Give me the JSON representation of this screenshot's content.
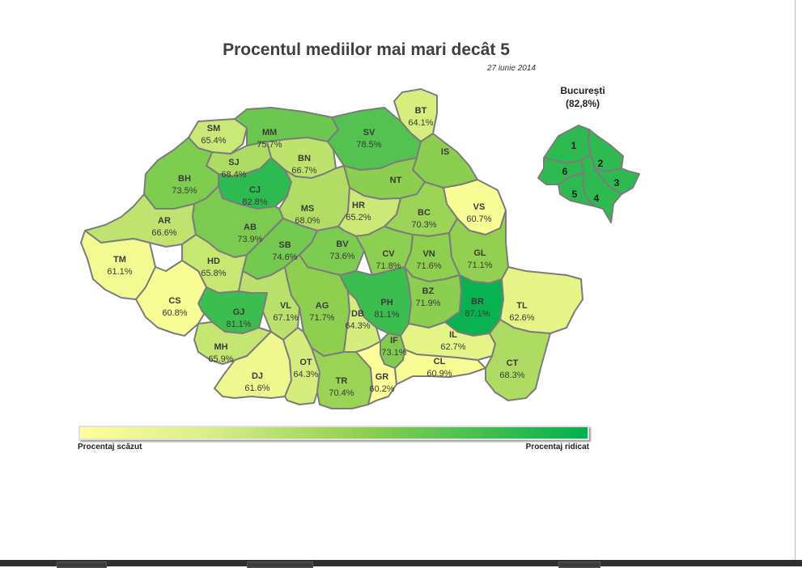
{
  "title": "Procentul mediilor mai mari decât 5",
  "date": "27 iunie 2014",
  "bucharest": {
    "name": "București",
    "value": "(82,8%)",
    "sectors": [
      "1",
      "2",
      "3",
      "4",
      "5",
      "6"
    ]
  },
  "legend": {
    "low_label": "Procentaj scăzut",
    "high_label": "Procentaj ridicat",
    "low_color": "#ffff99",
    "high_color": "#00b050"
  },
  "counties": [
    {
      "code": "SM",
      "value": "65.4%"
    },
    {
      "code": "MM",
      "value": "75.7%"
    },
    {
      "code": "BT",
      "value": "64.1%"
    },
    {
      "code": "SV",
      "value": "78.5%"
    },
    {
      "code": "IS",
      "value": ""
    },
    {
      "code": "SJ",
      "value": "68.4%"
    },
    {
      "code": "BN",
      "value": "66.7%"
    },
    {
      "code": "BH",
      "value": "73.5%"
    },
    {
      "code": "CJ",
      "value": "82.8%"
    },
    {
      "code": "NT",
      "value": ""
    },
    {
      "code": "VS",
      "value": "60.7%"
    },
    {
      "code": "MS",
      "value": "68.0%"
    },
    {
      "code": "HR",
      "value": "65.2%"
    },
    {
      "code": "BC",
      "value": "70.3%"
    },
    {
      "code": "AR",
      "value": "66.6%"
    },
    {
      "code": "AB",
      "value": "73.9%"
    },
    {
      "code": "GL",
      "value": "71.1%"
    },
    {
      "code": "TM",
      "value": "61.1%"
    },
    {
      "code": "HD",
      "value": "65.8%"
    },
    {
      "code": "SB",
      "value": "74.6%"
    },
    {
      "code": "BV",
      "value": "73.6%"
    },
    {
      "code": "CV",
      "value": "71.8%"
    },
    {
      "code": "VN",
      "value": "71.6%"
    },
    {
      "code": "CS",
      "value": "60.8%"
    },
    {
      "code": "GJ",
      "value": "81.1%"
    },
    {
      "code": "VL",
      "value": "67.1%"
    },
    {
      "code": "AG",
      "value": "71.7%"
    },
    {
      "code": "PH",
      "value": "81.1%"
    },
    {
      "code": "BZ",
      "value": "71.9%"
    },
    {
      "code": "BR",
      "value": "87.1%"
    },
    {
      "code": "TL",
      "value": "62.6%"
    },
    {
      "code": "DB",
      "value": "64.3%"
    },
    {
      "code": "MH",
      "value": "65.9%"
    },
    {
      "code": "IL",
      "value": "62.7%"
    },
    {
      "code": "IF",
      "value": "73.1%"
    },
    {
      "code": "DJ",
      "value": "61.6%"
    },
    {
      "code": "OT",
      "value": "64.3%"
    },
    {
      "code": "TR",
      "value": "70.4%"
    },
    {
      "code": "GR",
      "value": "60.2%"
    },
    {
      "code": "CL",
      "value": "60.9%"
    },
    {
      "code": "CT",
      "value": "68.3%"
    }
  ]
}
